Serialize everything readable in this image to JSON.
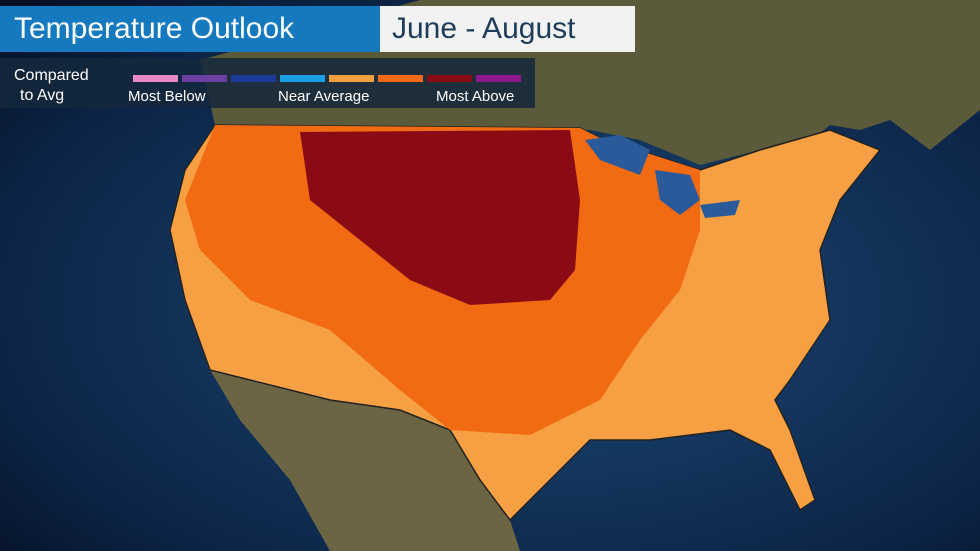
{
  "header": {
    "title": "Temperature Outlook",
    "period": "June - August"
  },
  "legend": {
    "heading": [
      "Compared",
      "to Avg"
    ],
    "swatches": [
      "#e58ac6",
      "#6b3fa3",
      "#1c3a9c",
      "#1b9ee3",
      "#f5a03e",
      "#f36a12",
      "#8b0b14",
      "#8c1a8c"
    ],
    "labels": [
      "Most Below",
      "Near Average",
      "Most Above"
    ]
  }
}
